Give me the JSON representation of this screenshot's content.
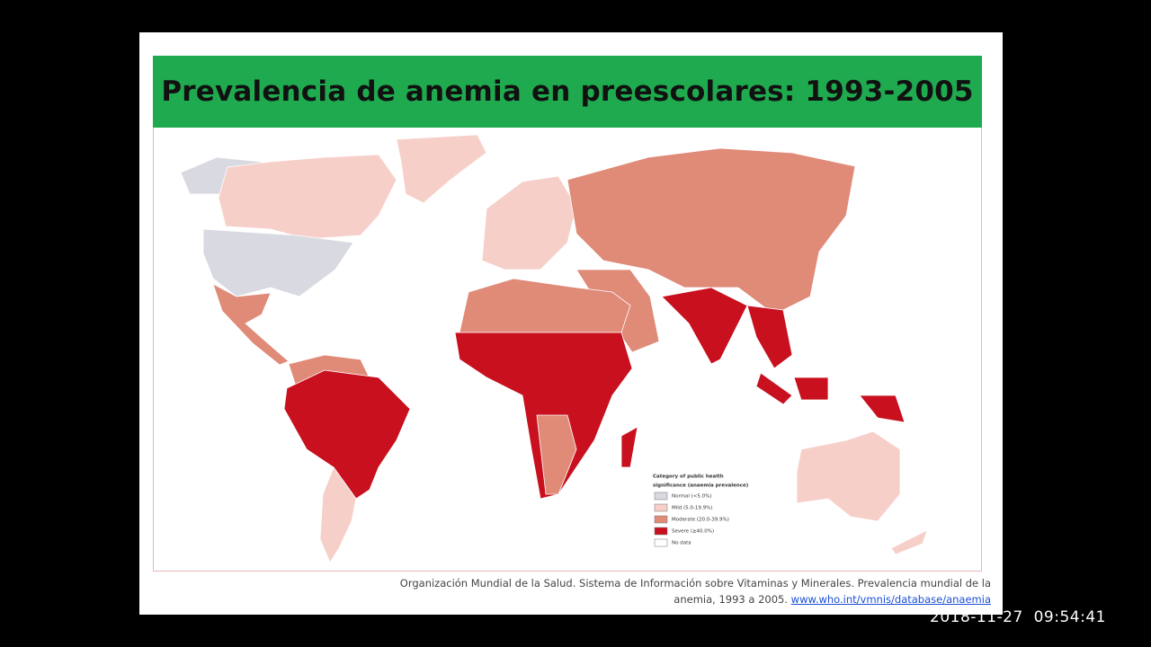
{
  "slide": {
    "title": "Prevalencia de anemia en preescolares: 1993-2005",
    "legend": {
      "title_line1": "Category of public health",
      "title_line2": "significance (anaemia prevalence)",
      "items": [
        "Normal (<5.0%)",
        "Mild (5.0-19.9%)",
        "Moderate (20.0-39.9%)",
        "Severe (≥40.0%)",
        "No data"
      ]
    },
    "citation": {
      "line1": "Organización Mundial de la Salud. Sistema de Información sobre Vitaminas y Minerales. Prevalencia mundial de la",
      "line2": "anemia, 1993 a 2005.",
      "link": "www.who.int/vmnis/database/anaemia"
    }
  },
  "timestamp": "2018-11-27  09:54:41"
}
